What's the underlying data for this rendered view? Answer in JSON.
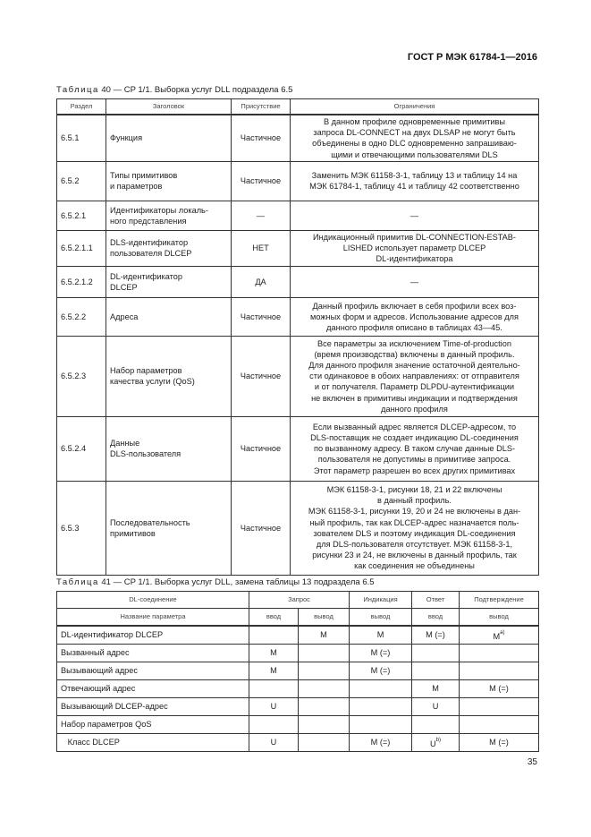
{
  "header": {
    "doc_id": "ГОСТ Р МЭК 61784-1—2016"
  },
  "table40": {
    "caption_word": "Таблица",
    "caption_rest": " 40 — CP 1/1. Выборка услуг DLL подраздела 6.5",
    "columns": [
      "Раздел",
      "Заголовок",
      "Присутствие",
      "Ограничения"
    ],
    "rows": [
      {
        "section": "6.5.1",
        "title": "Функция",
        "presence": "Частичное",
        "constraints": "В данном профиле одновременные примитивы\nзапроса DL-CONNECT на двух DLSAP не могут быть\nобъединены в одно DLC одновременно запрашиваю-\nщими и отвечающими пользователями DLS"
      },
      {
        "section": "6.5.2",
        "title": "Типы примитивов\nи параметров",
        "presence": "Частичное",
        "constraints": "Заменить МЭК 61158-3-1, таблицу 13 и таблицу 14 на\nМЭК 61784-1, таблицу 41 и таблицу 42 соответственно"
      },
      {
        "section": "6.5.2.1",
        "title": "Идентификаторы  локаль-\nного представления",
        "presence": "—",
        "constraints": "—"
      },
      {
        "section": "6.5.2.1.1",
        "title": "DLS-идентификатор\nпользователя DLCEP",
        "presence": "НЕТ",
        "constraints": "Индикационный примитив DL-CONNECTION-ESTAB-\nLISHED использует параметр DLCEP\nDL-идентификатора"
      },
      {
        "section": "6.5.2.1.2",
        "title": "DL-идентификатор\nDLCEP",
        "presence": "ДА",
        "constraints": "—"
      },
      {
        "section": "6.5.2.2",
        "title": "Адреса",
        "presence": "Частичное",
        "constraints": "Данный профиль включает в себя профили всех воз-\nможных форм и адресов. Использование адресов для\nданного профиля описано в таблицах 43—45."
      },
      {
        "section": "6.5.2.3",
        "title": "Набор параметров\nкачества услуги (QoS)",
        "presence": "Частичное",
        "constraints": "Все параметры за исключением Time-of-production\n(время производства) включены в данный профиль.\nДля данного профиля значение остаточной деятельно-\nсти одинаковое в обоих направлениях: от отправителя\nи от получателя. Параметр DLPDU-аутентификации\nне включен в примитивы индикации и подтверждения\nданного профиля"
      },
      {
        "section": "6.5.2.4",
        "title": "Данные\nDLS-пользователя",
        "presence": "Частичное",
        "constraints": "Если вызванный адрес является DLCEP-адресом, то\nDLS-поставщик не создает индикацию DL-соединения\nпо вызванному адресу. В таком случае данные DLS-\nпользователя не допустимы в примитиве запроса.\nЭтот параметр разрешен во всех других примитивах"
      },
      {
        "section": "6.5.3",
        "title": "Последовательность\nпримитивов",
        "presence": "Частичное",
        "constraints": "МЭК 61158-3-1, рисунки 18, 21 и 22 включены\nв данный профиль.\nМЭК 61158-3-1, рисунки 19, 20 и 24 не включены в дан-\nный профиль, так как DLCEP-адрес назначается поль-\nзователем DLS и поэтому индикация DL-соединения\nдля DLS-пользователя отсутствует. МЭК 61158-3-1,\nрисунки 23 и 24, не включены в данный профиль, так\nкак соединения не объединены"
      }
    ]
  },
  "table41": {
    "caption_word": "Таблица",
    "caption_rest": " 41 — CP 1/1. Выборка услуг DLL, замена таблицы 13 подраздела 6.5",
    "header1": [
      "DL-соединение",
      "Запрос",
      "Индикация",
      "Ответ",
      "Подтверждение"
    ],
    "header2": [
      "Название параметра",
      "ввод",
      "вывод",
      "вывод",
      "ввод",
      "вывод"
    ],
    "rows": [
      {
        "name": "DL-идентификатор DLCEP",
        "cells": [
          "",
          "M",
          "M",
          "M (=)",
          "M"
        ],
        "notes": [
          "",
          "",
          "",
          "",
          "a)"
        ]
      },
      {
        "name": "Вызванный адрес",
        "cells": [
          "M",
          "",
          "M (=)",
          "",
          ""
        ],
        "notes": [
          "",
          "",
          "",
          "",
          ""
        ]
      },
      {
        "name": "Вызывающий адрес",
        "cells": [
          "M",
          "",
          "M (=)",
          "",
          ""
        ],
        "notes": [
          "",
          "",
          "",
          "",
          ""
        ]
      },
      {
        "name": "Отвечающий адрес",
        "cells": [
          "",
          "",
          "",
          "M",
          "M (=)"
        ],
        "notes": [
          "",
          "",
          "",
          "",
          ""
        ]
      },
      {
        "name": "Вызывающий DLCEP-адрес",
        "cells": [
          "U",
          "",
          "",
          "U",
          ""
        ],
        "notes": [
          "",
          "",
          "",
          "",
          ""
        ]
      },
      {
        "name": "Набор параметров QoS",
        "cells": [
          "",
          "",
          "",
          "",
          ""
        ],
        "notes": [
          "",
          "",
          "",
          "",
          ""
        ]
      },
      {
        "name": "   Класс DLCEP",
        "cells": [
          "U",
          "",
          "M (=)",
          "U",
          "M (=)"
        ],
        "notes": [
          "",
          "",
          "",
          "b)",
          ""
        ]
      }
    ]
  },
  "footer": {
    "page_number": "35"
  }
}
